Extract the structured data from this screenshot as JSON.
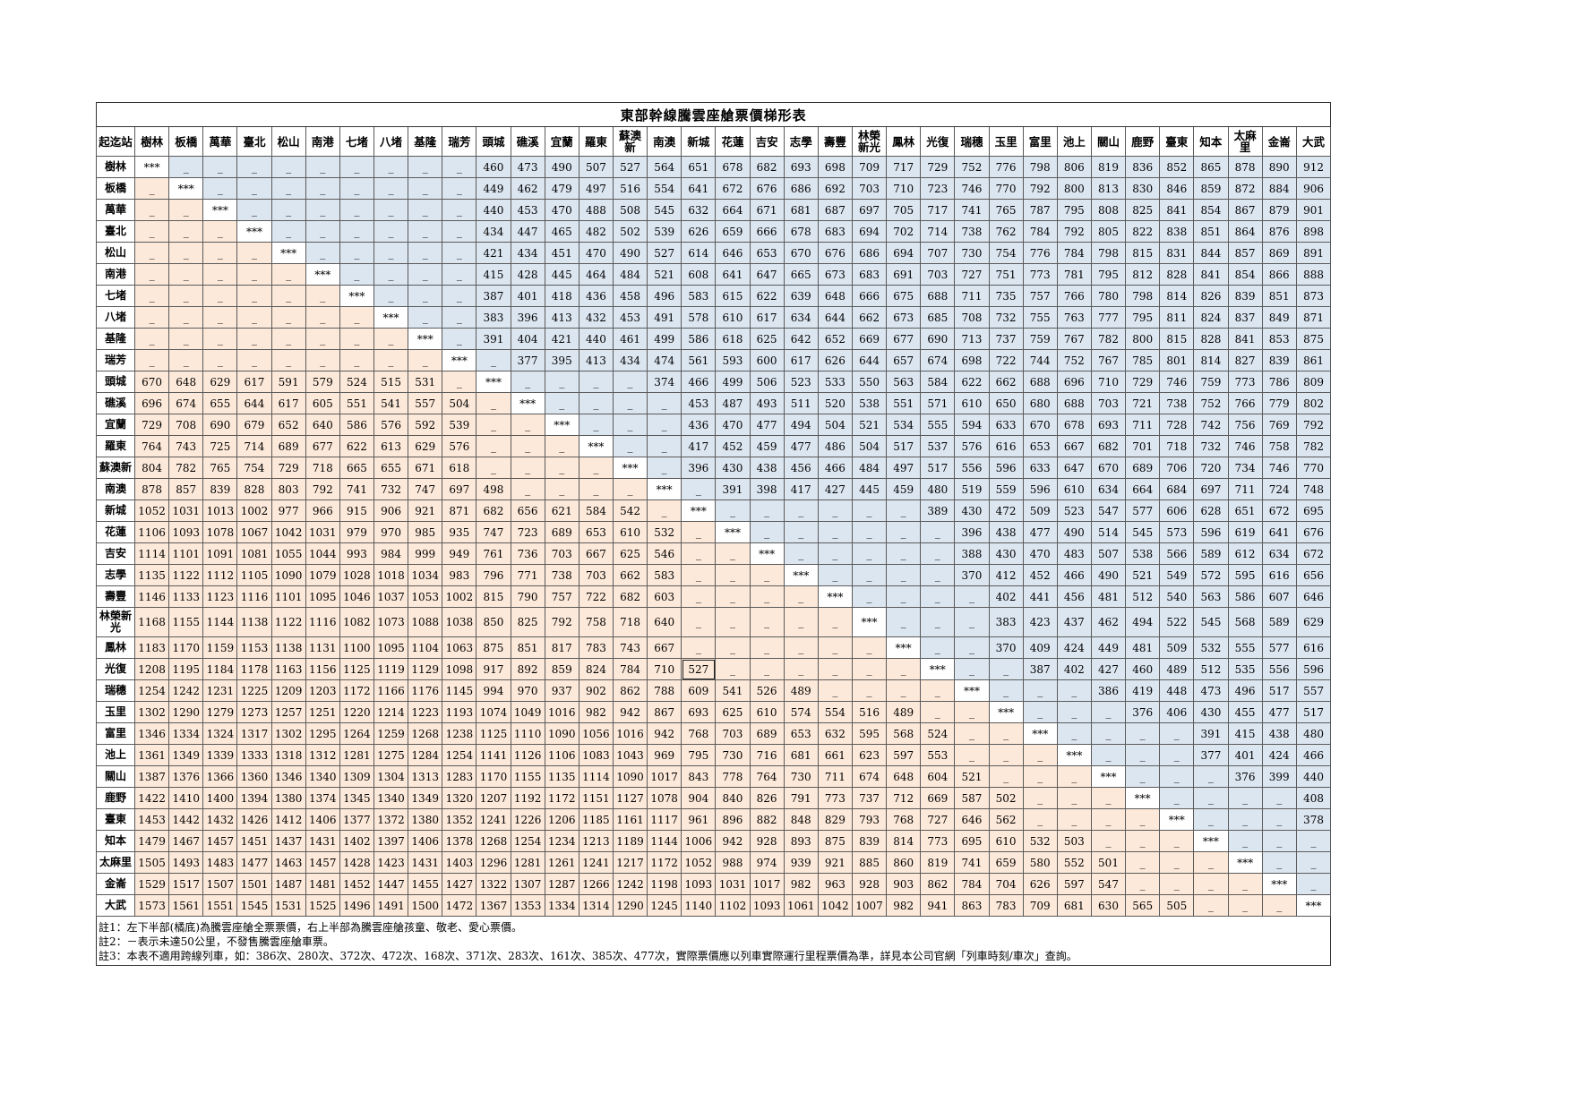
{
  "title": "東部幹線騰雲座艙票價梯形表",
  "corner_label": "起迄站",
  "stations": [
    "樹林",
    "板橋",
    "萬華",
    "臺北",
    "松山",
    "南港",
    "七堵",
    "八堵",
    "基隆",
    "瑞芳",
    "頭城",
    "礁溪",
    "宜蘭",
    "羅東",
    "蘇澳新",
    "南澳",
    "新城",
    "花蓮",
    "吉安",
    "志學",
    "壽豐",
    "林榮新光",
    "鳳林",
    "光復",
    "瑞穗",
    "玉里",
    "富里",
    "池上",
    "關山",
    "鹿野",
    "臺東",
    "知本",
    "太麻里",
    "金崙",
    "大武"
  ],
  "head_labels": [
    "樹林",
    "板橋",
    "萬華",
    "臺北",
    "松山",
    "南港",
    "七堵",
    "八堵",
    "基隆",
    "瑞芳",
    "頭城",
    "礁溪",
    "宜蘭",
    "羅東",
    "蘇澳新",
    "南澳",
    "新城",
    "花蓮",
    "吉安",
    "志學",
    "壽豐",
    "林榮\n新光",
    "鳳林",
    "光復",
    "瑞穗",
    "玉里",
    "富里",
    "池上",
    "關山",
    "鹿野",
    "臺東",
    "知本",
    "太麻里",
    "金崙",
    "大武"
  ],
  "row_labels": [
    "樹林",
    "板橋",
    "萬華",
    "臺北",
    "松山",
    "南港",
    "七堵",
    "八堵",
    "基隆",
    "瑞芳",
    "頭城",
    "礁溪",
    "宜蘭",
    "羅東",
    "蘇澳新",
    "南澳",
    "新城",
    "花蓮",
    "吉安",
    "志學",
    "壽豐",
    "林榮新\n光",
    "鳳林",
    "光復",
    "瑞穗",
    "玉里",
    "富里",
    "池上",
    "關山",
    "鹿野",
    "臺東",
    "知本",
    "太麻里",
    "金崙",
    "大武"
  ],
  "diagonal_mark": "***",
  "not_sold_mark": "_",
  "rows": [
    [
      "***",
      "_",
      "_",
      "_",
      "_",
      "_",
      "_",
      "_",
      "_",
      "_",
      "460",
      "473",
      "490",
      "507",
      "527",
      "564",
      "651",
      "678",
      "682",
      "693",
      "698",
      "709",
      "717",
      "729",
      "752",
      "776",
      "798",
      "806",
      "819",
      "836",
      "852",
      "865",
      "878",
      "890",
      "912"
    ],
    [
      "_",
      "***",
      "_",
      "_",
      "_",
      "_",
      "_",
      "_",
      "_",
      "_",
      "449",
      "462",
      "479",
      "497",
      "516",
      "554",
      "641",
      "672",
      "676",
      "686",
      "692",
      "703",
      "710",
      "723",
      "746",
      "770",
      "792",
      "800",
      "813",
      "830",
      "846",
      "859",
      "872",
      "884",
      "906"
    ],
    [
      "_",
      "_",
      "***",
      "_",
      "_",
      "_",
      "_",
      "_",
      "_",
      "_",
      "440",
      "453",
      "470",
      "488",
      "508",
      "545",
      "632",
      "664",
      "671",
      "681",
      "687",
      "697",
      "705",
      "717",
      "741",
      "765",
      "787",
      "795",
      "808",
      "825",
      "841",
      "854",
      "867",
      "879",
      "901"
    ],
    [
      "_",
      "_",
      "_",
      "***",
      "_",
      "_",
      "_",
      "_",
      "_",
      "_",
      "434",
      "447",
      "465",
      "482",
      "502",
      "539",
      "626",
      "659",
      "666",
      "678",
      "683",
      "694",
      "702",
      "714",
      "738",
      "762",
      "784",
      "792",
      "805",
      "822",
      "838",
      "851",
      "864",
      "876",
      "898"
    ],
    [
      "_",
      "_",
      "_",
      "_",
      "***",
      "_",
      "_",
      "_",
      "_",
      "_",
      "421",
      "434",
      "451",
      "470",
      "490",
      "527",
      "614",
      "646",
      "653",
      "670",
      "676",
      "686",
      "694",
      "707",
      "730",
      "754",
      "776",
      "784",
      "798",
      "815",
      "831",
      "844",
      "857",
      "869",
      "891"
    ],
    [
      "_",
      "_",
      "_",
      "_",
      "_",
      "***",
      "_",
      "_",
      "_",
      "_",
      "415",
      "428",
      "445",
      "464",
      "484",
      "521",
      "608",
      "641",
      "647",
      "665",
      "673",
      "683",
      "691",
      "703",
      "727",
      "751",
      "773",
      "781",
      "795",
      "812",
      "828",
      "841",
      "854",
      "866",
      "888"
    ],
    [
      "_",
      "_",
      "_",
      "_",
      "_",
      "_",
      "***",
      "_",
      "_",
      "_",
      "387",
      "401",
      "418",
      "436",
      "458",
      "496",
      "583",
      "615",
      "622",
      "639",
      "648",
      "666",
      "675",
      "688",
      "711",
      "735",
      "757",
      "766",
      "780",
      "798",
      "814",
      "826",
      "839",
      "851",
      "873"
    ],
    [
      "_",
      "_",
      "_",
      "_",
      "_",
      "_",
      "_",
      "***",
      "_",
      "_",
      "383",
      "396",
      "413",
      "432",
      "453",
      "491",
      "578",
      "610",
      "617",
      "634",
      "644",
      "662",
      "673",
      "685",
      "708",
      "732",
      "755",
      "763",
      "777",
      "795",
      "811",
      "824",
      "837",
      "849",
      "871"
    ],
    [
      "_",
      "_",
      "_",
      "_",
      "_",
      "_",
      "_",
      "_",
      "***",
      "_",
      "391",
      "404",
      "421",
      "440",
      "461",
      "499",
      "586",
      "618",
      "625",
      "642",
      "652",
      "669",
      "677",
      "690",
      "713",
      "737",
      "759",
      "767",
      "782",
      "800",
      "815",
      "828",
      "841",
      "853",
      "875"
    ],
    [
      "_",
      "_",
      "_",
      "_",
      "_",
      "_",
      "_",
      "_",
      "_",
      "***",
      "_",
      "377",
      "395",
      "413",
      "434",
      "474",
      "561",
      "593",
      "600",
      "617",
      "626",
      "644",
      "657",
      "674",
      "698",
      "722",
      "744",
      "752",
      "767",
      "785",
      "801",
      "814",
      "827",
      "839",
      "861"
    ],
    [
      "670",
      "648",
      "629",
      "617",
      "591",
      "579",
      "524",
      "515",
      "531",
      "_",
      "***",
      "_",
      "_",
      "_",
      "_",
      "374",
      "466",
      "499",
      "506",
      "523",
      "533",
      "550",
      "563",
      "584",
      "622",
      "662",
      "688",
      "696",
      "710",
      "729",
      "746",
      "759",
      "773",
      "786",
      "809"
    ],
    [
      "696",
      "674",
      "655",
      "644",
      "617",
      "605",
      "551",
      "541",
      "557",
      "504",
      "_",
      "***",
      "_",
      "_",
      "_",
      "_",
      "453",
      "487",
      "493",
      "511",
      "520",
      "538",
      "551",
      "571",
      "610",
      "650",
      "680",
      "688",
      "703",
      "721",
      "738",
      "752",
      "766",
      "779",
      "802"
    ],
    [
      "729",
      "708",
      "690",
      "679",
      "652",
      "640",
      "586",
      "576",
      "592",
      "539",
      "_",
      "_",
      "***",
      "_",
      "_",
      "_",
      "436",
      "470",
      "477",
      "494",
      "504",
      "521",
      "534",
      "555",
      "594",
      "633",
      "670",
      "678",
      "693",
      "711",
      "728",
      "742",
      "756",
      "769",
      "792"
    ],
    [
      "764",
      "743",
      "725",
      "714",
      "689",
      "677",
      "622",
      "613",
      "629",
      "576",
      "_",
      "_",
      "_",
      "***",
      "_",
      "_",
      "417",
      "452",
      "459",
      "477",
      "486",
      "504",
      "517",
      "537",
      "576",
      "616",
      "653",
      "667",
      "682",
      "701",
      "718",
      "732",
      "746",
      "758",
      "782"
    ],
    [
      "804",
      "782",
      "765",
      "754",
      "729",
      "718",
      "665",
      "655",
      "671",
      "618",
      "_",
      "_",
      "_",
      "_",
      "***",
      "_",
      "396",
      "430",
      "438",
      "456",
      "466",
      "484",
      "497",
      "517",
      "556",
      "596",
      "633",
      "647",
      "670",
      "689",
      "706",
      "720",
      "734",
      "746",
      "770"
    ],
    [
      "878",
      "857",
      "839",
      "828",
      "803",
      "792",
      "741",
      "732",
      "747",
      "697",
      "498",
      "_",
      "_",
      "_",
      "_",
      "***",
      "_",
      "391",
      "398",
      "417",
      "427",
      "445",
      "459",
      "480",
      "519",
      "559",
      "596",
      "610",
      "634",
      "664",
      "684",
      "697",
      "711",
      "724",
      "748"
    ],
    [
      "1052",
      "1031",
      "1013",
      "1002",
      "977",
      "966",
      "915",
      "906",
      "921",
      "871",
      "682",
      "656",
      "621",
      "584",
      "542",
      "_",
      "***",
      "_",
      "_",
      "_",
      "_",
      "_",
      "_",
      "389",
      "430",
      "472",
      "509",
      "523",
      "547",
      "577",
      "606",
      "628",
      "651",
      "672",
      "695"
    ],
    [
      "1106",
      "1093",
      "1078",
      "1067",
      "1042",
      "1031",
      "979",
      "970",
      "985",
      "935",
      "747",
      "723",
      "689",
      "653",
      "610",
      "532",
      "_",
      "***",
      "_",
      "_",
      "_",
      "_",
      "_",
      "_",
      "396",
      "438",
      "477",
      "490",
      "514",
      "545",
      "573",
      "596",
      "619",
      "641",
      "676"
    ],
    [
      "1114",
      "1101",
      "1091",
      "1081",
      "1055",
      "1044",
      "993",
      "984",
      "999",
      "949",
      "761",
      "736",
      "703",
      "667",
      "625",
      "546",
      "_",
      "_",
      "***",
      "_",
      "_",
      "_",
      "_",
      "_",
      "388",
      "430",
      "470",
      "483",
      "507",
      "538",
      "566",
      "589",
      "612",
      "634",
      "672"
    ],
    [
      "1135",
      "1122",
      "1112",
      "1105",
      "1090",
      "1079",
      "1028",
      "1018",
      "1034",
      "983",
      "796",
      "771",
      "738",
      "703",
      "662",
      "583",
      "_",
      "_",
      "_",
      "***",
      "_",
      "_",
      "_",
      "_",
      "370",
      "412",
      "452",
      "466",
      "490",
      "521",
      "549",
      "572",
      "595",
      "616",
      "656"
    ],
    [
      "1146",
      "1133",
      "1123",
      "1116",
      "1101",
      "1095",
      "1046",
      "1037",
      "1053",
      "1002",
      "815",
      "790",
      "757",
      "722",
      "682",
      "603",
      "_",
      "_",
      "_",
      "_",
      "***",
      "_",
      "_",
      "_",
      "_",
      "402",
      "441",
      "456",
      "481",
      "512",
      "540",
      "563",
      "586",
      "607",
      "646"
    ],
    [
      "1168",
      "1155",
      "1144",
      "1138",
      "1122",
      "1116",
      "1082",
      "1073",
      "1088",
      "1038",
      "850",
      "825",
      "792",
      "758",
      "718",
      "640",
      "_",
      "_",
      "_",
      "_",
      "_",
      "***",
      "_",
      "_",
      "_",
      "383",
      "423",
      "437",
      "462",
      "494",
      "522",
      "545",
      "568",
      "589",
      "629"
    ],
    [
      "1183",
      "1170",
      "1159",
      "1153",
      "1138",
      "1131",
      "1100",
      "1095",
      "1104",
      "1063",
      "875",
      "851",
      "817",
      "783",
      "743",
      "667",
      "_",
      "_",
      "_",
      "_",
      "_",
      "_",
      "***",
      "_",
      "_",
      "370",
      "409",
      "424",
      "449",
      "481",
      "509",
      "532",
      "555",
      "577",
      "616"
    ],
    [
      "1208",
      "1195",
      "1184",
      "1178",
      "1163",
      "1156",
      "1125",
      "1119",
      "1129",
      "1098",
      "917",
      "892",
      "859",
      "824",
      "784",
      "710",
      "527",
      "_",
      "_",
      "_",
      "_",
      "_",
      "_",
      "***",
      "_",
      "_",
      "387",
      "402",
      "427",
      "460",
      "489",
      "512",
      "535",
      "556",
      "596"
    ],
    [
      "1254",
      "1242",
      "1231",
      "1225",
      "1209",
      "1203",
      "1172",
      "1166",
      "1176",
      "1145",
      "994",
      "970",
      "937",
      "902",
      "862",
      "788",
      "609",
      "541",
      "526",
      "489",
      "_",
      "_",
      "_",
      "_",
      "***",
      "_",
      "_",
      "_",
      "386",
      "419",
      "448",
      "473",
      "496",
      "517",
      "557"
    ],
    [
      "1302",
      "1290",
      "1279",
      "1273",
      "1257",
      "1251",
      "1220",
      "1214",
      "1223",
      "1193",
      "1074",
      "1049",
      "1016",
      "982",
      "942",
      "867",
      "693",
      "625",
      "610",
      "574",
      "554",
      "516",
      "489",
      "_",
      "_",
      "***",
      "_",
      "_",
      "_",
      "376",
      "406",
      "430",
      "455",
      "477",
      "517"
    ],
    [
      "1346",
      "1334",
      "1324",
      "1317",
      "1302",
      "1295",
      "1264",
      "1259",
      "1268",
      "1238",
      "1125",
      "1110",
      "1090",
      "1056",
      "1016",
      "942",
      "768",
      "703",
      "689",
      "653",
      "632",
      "595",
      "568",
      "524",
      "_",
      "_",
      "***",
      "_",
      "_",
      "_",
      "_",
      "391",
      "415",
      "438",
      "480"
    ],
    [
      "1361",
      "1349",
      "1339",
      "1333",
      "1318",
      "1312",
      "1281",
      "1275",
      "1284",
      "1254",
      "1141",
      "1126",
      "1106",
      "1083",
      "1043",
      "969",
      "795",
      "730",
      "716",
      "681",
      "661",
      "623",
      "597",
      "553",
      "_",
      "_",
      "_",
      "***",
      "_",
      "_",
      "_",
      "377",
      "401",
      "424",
      "466"
    ],
    [
      "1387",
      "1376",
      "1366",
      "1360",
      "1346",
      "1340",
      "1309",
      "1304",
      "1313",
      "1283",
      "1170",
      "1155",
      "1135",
      "1114",
      "1090",
      "1017",
      "843",
      "778",
      "764",
      "730",
      "711",
      "674",
      "648",
      "604",
      "521",
      "_",
      "_",
      "_",
      "***",
      "_",
      "_",
      "_",
      "376",
      "399",
      "440"
    ],
    [
      "1422",
      "1410",
      "1400",
      "1394",
      "1380",
      "1374",
      "1345",
      "1340",
      "1349",
      "1320",
      "1207",
      "1192",
      "1172",
      "1151",
      "1127",
      "1078",
      "904",
      "840",
      "826",
      "791",
      "773",
      "737",
      "712",
      "669",
      "587",
      "502",
      "_",
      "_",
      "_",
      "***",
      "_",
      "_",
      "_",
      "_",
      "408"
    ],
    [
      "1453",
      "1442",
      "1432",
      "1426",
      "1412",
      "1406",
      "1377",
      "1372",
      "1380",
      "1352",
      "1241",
      "1226",
      "1206",
      "1185",
      "1161",
      "1117",
      "961",
      "896",
      "882",
      "848",
      "829",
      "793",
      "768",
      "727",
      "646",
      "562",
      "_",
      "_",
      "_",
      "_",
      "***",
      "_",
      "_",
      "_",
      "378"
    ],
    [
      "1479",
      "1467",
      "1457",
      "1451",
      "1437",
      "1431",
      "1402",
      "1397",
      "1406",
      "1378",
      "1268",
      "1254",
      "1234",
      "1213",
      "1189",
      "1144",
      "1006",
      "942",
      "928",
      "893",
      "875",
      "839",
      "814",
      "773",
      "695",
      "610",
      "532",
      "503",
      "_",
      "_",
      "_",
      "***",
      "_",
      "_",
      "_"
    ],
    [
      "1505",
      "1493",
      "1483",
      "1477",
      "1463",
      "1457",
      "1428",
      "1423",
      "1431",
      "1403",
      "1296",
      "1281",
      "1261",
      "1241",
      "1217",
      "1172",
      "1052",
      "988",
      "974",
      "939",
      "921",
      "885",
      "860",
      "819",
      "741",
      "659",
      "580",
      "552",
      "501",
      "_",
      "_",
      "_",
      "***",
      "_",
      "_"
    ],
    [
      "1529",
      "1517",
      "1507",
      "1501",
      "1487",
      "1481",
      "1452",
      "1447",
      "1455",
      "1427",
      "1322",
      "1307",
      "1287",
      "1266",
      "1242",
      "1198",
      "1093",
      "1031",
      "1017",
      "982",
      "963",
      "928",
      "903",
      "862",
      "784",
      "704",
      "626",
      "597",
      "547",
      "_",
      "_",
      "_",
      "_",
      "***",
      "_"
    ],
    [
      "1573",
      "1561",
      "1551",
      "1545",
      "1531",
      "1525",
      "1496",
      "1491",
      "1500",
      "1472",
      "1367",
      "1353",
      "1334",
      "1314",
      "1290",
      "1245",
      "1140",
      "1102",
      "1093",
      "1061",
      "1042",
      "1007",
      "982",
      "941",
      "863",
      "783",
      "709",
      "681",
      "630",
      "565",
      "505",
      "_",
      "_",
      "_",
      "***"
    ]
  ],
  "highlighted_cell": {
    "row": 23,
    "col": 16
  },
  "colors": {
    "upper_child_fare": "#dce6f1",
    "lower_full_fare": "#fde9d9",
    "border": "#5a5a5a"
  },
  "notes": [
    "註1：左下半部(橘底)為騰雲座艙全票票價，右上半部為騰雲座艙孩童、敬老、愛心票價。",
    "註2：－表示未達50公里，不發售騰雲座艙車票。",
    "註3：本表不適用跨線列車，如：386次、280次、372次、472次、168次、371次、283次、161次、385次、477次，實際票價應以列車實際運行里程票價為準，詳見本公司官網「列車時刻/車次」查詢。"
  ]
}
